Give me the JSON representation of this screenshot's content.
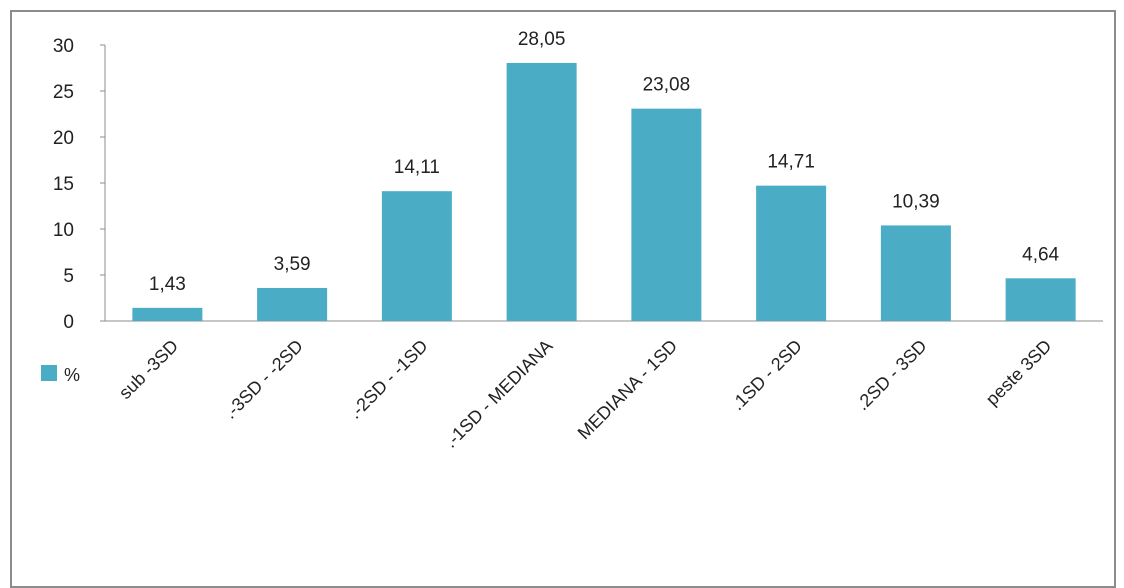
{
  "chart_data": {
    "type": "bar",
    "categories": [
      "sub -3SD",
      ".-3SD - -2SD",
      ".-2SD - -1SD",
      ".-1SD - MEDIANA",
      "MEDIANA - 1SD",
      ".1SD - 2SD",
      ".2SD - 3SD",
      "peste 3SD"
    ],
    "series": [
      {
        "name": "%",
        "values": [
          1.43,
          3.59,
          14.11,
          28.05,
          23.08,
          14.71,
          10.39,
          4.64
        ],
        "labels": [
          "1,43",
          "3,59",
          "14,11",
          "28,05",
          "23,08",
          "14,71",
          "10,39",
          "4,64"
        ],
        "color": "#4bacc6"
      }
    ],
    "title": "",
    "xlabel": "",
    "ylabel": "",
    "ylim": [
      0,
      30
    ],
    "yticks": [
      0,
      5,
      10,
      15,
      20,
      25,
      30
    ],
    "grid": false,
    "legend_position": "left"
  }
}
